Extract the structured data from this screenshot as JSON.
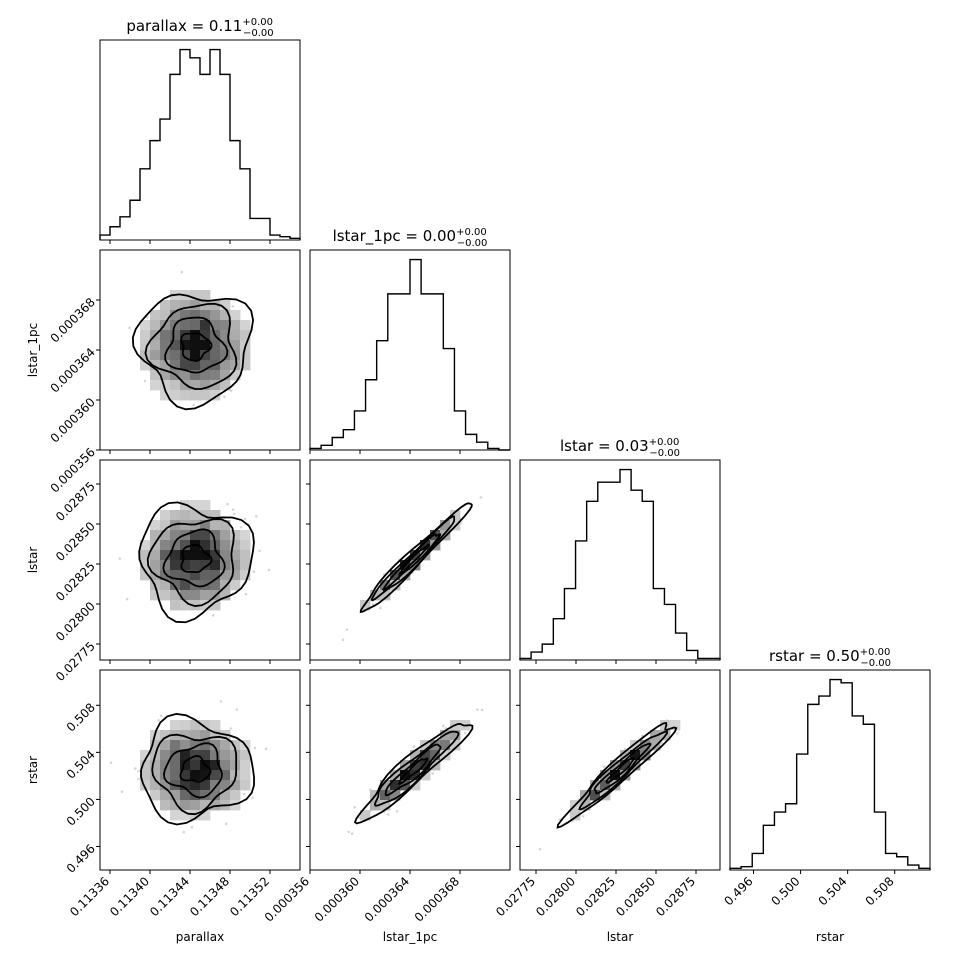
{
  "chart_data": {
    "type": "corner",
    "params": [
      {
        "name": "parallax",
        "label": "parallax",
        "range": [
          0.11335,
          0.11355
        ],
        "ticks": [
          0.11336,
          0.1134,
          0.11344,
          0.11348,
          0.11352
        ],
        "tick_labels": [
          "0.11336",
          "0.11340",
          "0.11344",
          "0.11348",
          "0.11352"
        ],
        "mean": 0.113445,
        "sd": 2.8e-05,
        "title_main": "parallax = 0.11",
        "title_sup": "+0.00",
        "title_sub": "−0.00",
        "hist_counts": [
          3,
          8,
          14,
          24,
          43,
          60,
          73,
          100,
          115,
          110,
          100,
          115,
          100,
          60,
          43,
          13,
          13,
          3,
          2,
          1
        ]
      },
      {
        "name": "lstar_1pc",
        "label": "lstar_1pc",
        "range": [
          0.000356,
          0.000372
        ],
        "ticks": [
          0.000356,
          0.00036,
          0.000364,
          0.000368
        ],
        "tick_labels": [
          "0.000356",
          "0.000360",
          "0.000364",
          "0.000368"
        ],
        "mean": 0.0003643,
        "sd": 2.2e-06,
        "title_main": "lstar_1pc = 0.00",
        "title_sup": "+0.00",
        "title_sub": "−0.00",
        "hist_counts": [
          1,
          3,
          8,
          13,
          25,
          45,
          70,
          100,
          100,
          122,
          100,
          100,
          65,
          25,
          10,
          5,
          1,
          0
        ]
      },
      {
        "name": "lstar",
        "label": "lstar",
        "range": [
          0.02765,
          0.0289
        ],
        "ticks": [
          0.02775,
          0.028,
          0.02825,
          0.0285,
          0.02875
        ],
        "tick_labels": [
          "0.02775",
          "0.02800",
          "0.02825",
          "0.02850",
          "0.02875"
        ],
        "mean": 0.02828,
        "sd": 0.00017,
        "title_main": "lstar = 0.03",
        "title_sup": "+0.00",
        "title_sub": "−0.00",
        "hist_counts": [
          1,
          5,
          10,
          26,
          45,
          75,
          100,
          112,
          112,
          120,
          107,
          100,
          45,
          35,
          17,
          6,
          1,
          1
        ]
      },
      {
        "name": "rstar",
        "label": "rstar",
        "range": [
          0.494,
          0.511
        ],
        "ticks": [
          0.496,
          0.5,
          0.504,
          0.508
        ],
        "tick_labels": [
          "0.496",
          "0.500",
          "0.504",
          "0.508"
        ],
        "mean": 0.5025,
        "sd": 0.0021,
        "title_main": "rstar = 0.50",
        "title_sup": "+0.00",
        "title_sub": "−0.00",
        "hist_counts": [
          1,
          2,
          10,
          27,
          35,
          40,
          70,
          100,
          105,
          115,
          113,
          93,
          88,
          35,
          10,
          8,
          3,
          1
        ]
      }
    ],
    "correlations": [
      [
        1.0,
        0.0,
        0.0,
        0.0
      ],
      [
        0.0,
        1.0,
        0.98,
        0.94
      ],
      [
        0.0,
        0.98,
        1.0,
        0.96
      ],
      [
        0.0,
        0.94,
        0.96,
        1.0
      ]
    ],
    "contour_levels_sigma": [
      0.5,
      1.0,
      1.5,
      2.0
    ]
  }
}
